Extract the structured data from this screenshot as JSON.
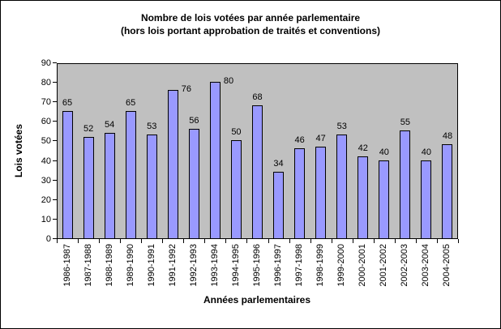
{
  "chart_data": {
    "type": "bar",
    "title_line1": "Nombre de lois votées par année parlementaire",
    "title_line2": "(hors lois portant approbation de traités et conventions)",
    "xlabel": "Années parlementaires",
    "ylabel": "Lois votées",
    "categories": [
      "1986-1987",
      "1987-1988",
      "1988-1989",
      "1989-1990",
      "1990-1991",
      "1991-1992",
      "1992-1993",
      "1993-1994",
      "1994-1995",
      "1995-1996",
      "1996-1997",
      "1997-1998",
      "1998-1999",
      "1999-2000",
      "2000-2001",
      "2001-2002",
      "2002-2003",
      "2003-2004",
      "2004-2005"
    ],
    "values": [
      65,
      52,
      54,
      65,
      53,
      76,
      56,
      80,
      50,
      68,
      34,
      46,
      47,
      53,
      42,
      40,
      55,
      40,
      48
    ],
    "ylim": [
      0,
      90
    ],
    "yticks": [
      0,
      10,
      20,
      30,
      40,
      50,
      60,
      70,
      80,
      90
    ],
    "grid": false,
    "legend_position": "none",
    "colors": {
      "bar_fill": "#9999FF",
      "bar_border": "#000000",
      "plot_bg": "#C0C0C0",
      "chart_bg": "#FFFFFF",
      "text": "#000000"
    }
  }
}
